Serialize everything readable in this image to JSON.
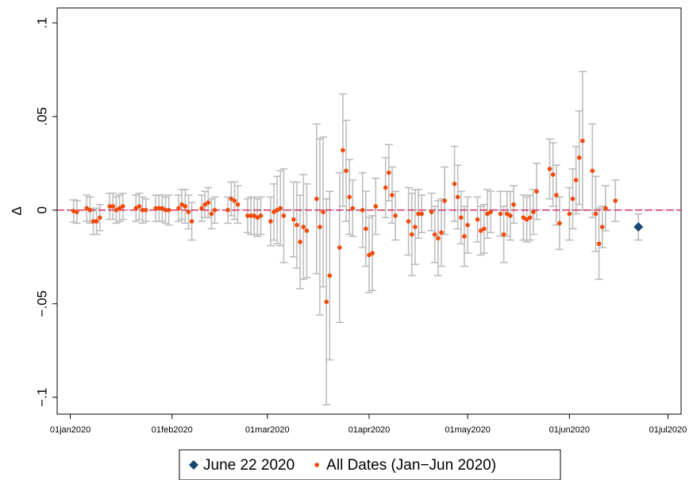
{
  "chart_data": {
    "type": "errorbar",
    "y_label": "Δ",
    "xlim": [
      "2019-12-28",
      "2020-07-05"
    ],
    "xticks": [
      {
        "value": "2020-01-01",
        "label": "01jan2020"
      },
      {
        "value": "2020-02-01",
        "label": "01feb2020"
      },
      {
        "value": "2020-03-01",
        "label": "01mar2020"
      },
      {
        "value": "2020-04-01",
        "label": "01apr2020"
      },
      {
        "value": "2020-05-01",
        "label": "01may2020"
      },
      {
        "value": "2020-06-01",
        "label": "01jun2020"
      },
      {
        "value": "2020-07-01",
        "label": "01jul2020"
      }
    ],
    "ylim": [
      -0.109,
      0.108
    ],
    "yticks": [
      {
        "value": -0.1,
        "label": "−.1"
      },
      {
        "value": -0.05,
        "label": "−.05"
      },
      0,
      {
        "value": 0.05,
        "label": ".05"
      },
      {
        "value": 0.1,
        "label": ".1"
      }
    ],
    "hline": 0,
    "hline_color": "#d62050",
    "error_color": "#bdbdbd",
    "series": [
      {
        "name": "June 22 2020",
        "color": "#1a476f",
        "marker": "diamond",
        "x": [
          "2020-06-22"
        ],
        "values": [
          -0.009
        ],
        "errors": [
          0.007
        ]
      },
      {
        "name": "All Dates (Jan−Jun 2020)",
        "color": "#f04a0c",
        "marker": "dot",
        "x": [
          "2020-01-02",
          "2020-01-03",
          "2020-01-06",
          "2020-01-07",
          "2020-01-08",
          "2020-01-09",
          "2020-01-10",
          "2020-01-13",
          "2020-01-14",
          "2020-01-15",
          "2020-01-16",
          "2020-01-17",
          "2020-01-21",
          "2020-01-22",
          "2020-01-23",
          "2020-01-24",
          "2020-01-27",
          "2020-01-28",
          "2020-01-29",
          "2020-01-30",
          "2020-01-31",
          "2020-02-03",
          "2020-02-04",
          "2020-02-05",
          "2020-02-06",
          "2020-02-07",
          "2020-02-10",
          "2020-02-11",
          "2020-02-12",
          "2020-02-13",
          "2020-02-14",
          "2020-02-18",
          "2020-02-19",
          "2020-02-20",
          "2020-02-21",
          "2020-02-24",
          "2020-02-25",
          "2020-02-26",
          "2020-02-27",
          "2020-02-28",
          "2020-03-02",
          "2020-03-03",
          "2020-03-04",
          "2020-03-05",
          "2020-03-06",
          "2020-03-09",
          "2020-03-10",
          "2020-03-11",
          "2020-03-12",
          "2020-03-13",
          "2020-03-16",
          "2020-03-17",
          "2020-03-18",
          "2020-03-19",
          "2020-03-20",
          "2020-03-23",
          "2020-03-24",
          "2020-03-25",
          "2020-03-26",
          "2020-03-27",
          "2020-03-30",
          "2020-03-31",
          "2020-04-01",
          "2020-04-02",
          "2020-04-03",
          "2020-04-06",
          "2020-04-07",
          "2020-04-08",
          "2020-04-09",
          "2020-04-13",
          "2020-04-14",
          "2020-04-15",
          "2020-04-16",
          "2020-04-17",
          "2020-04-20",
          "2020-04-21",
          "2020-04-22",
          "2020-04-23",
          "2020-04-24",
          "2020-04-27",
          "2020-04-28",
          "2020-04-29",
          "2020-04-30",
          "2020-05-01",
          "2020-05-04",
          "2020-05-05",
          "2020-05-06",
          "2020-05-07",
          "2020-05-08",
          "2020-05-11",
          "2020-05-12",
          "2020-05-13",
          "2020-05-14",
          "2020-05-15",
          "2020-05-18",
          "2020-05-19",
          "2020-05-20",
          "2020-05-21",
          "2020-05-22",
          "2020-05-26",
          "2020-05-27",
          "2020-05-28",
          "2020-05-29",
          "2020-06-01",
          "2020-06-02",
          "2020-06-03",
          "2020-06-04",
          "2020-06-05",
          "2020-06-08",
          "2020-06-09",
          "2020-06-10",
          "2020-06-11",
          "2020-06-12",
          "2020-06-15"
        ],
        "values": [
          -0.0005,
          -0.001,
          0.001,
          0,
          -0.006,
          -0.006,
          -0.004,
          0.002,
          0.002,
          0,
          0.001,
          0.002,
          0.001,
          0.002,
          0,
          0,
          0.001,
          0.001,
          0.001,
          0,
          0,
          0.001,
          0.003,
          0.002,
          -0.001,
          -0.006,
          0.001,
          0.003,
          0.004,
          -0.002,
          0,
          0,
          0.006,
          0.005,
          0.003,
          -0.003,
          -0.003,
          -0.003,
          -0.004,
          -0.003,
          -0.006,
          -0.001,
          0,
          0.001,
          -0.003,
          -0.005,
          -0.008,
          -0.017,
          -0.009,
          -0.011,
          0.006,
          -0.009,
          -0.001,
          -0.049,
          -0.035,
          -0.02,
          0.032,
          0.021,
          0.007,
          0.001,
          0,
          -0.01,
          -0.024,
          -0.023,
          0.002,
          0.012,
          0.02,
          0.008,
          -0.003,
          -0.006,
          -0.013,
          -0.009,
          -0.002,
          -0.002,
          -0.001,
          -0.013,
          -0.015,
          -0.012,
          0.005,
          0.014,
          0.007,
          -0.004,
          -0.014,
          -0.008,
          -0.005,
          -0.011,
          -0.01,
          -0.002,
          -0.001,
          -0.002,
          -0.013,
          -0.002,
          -0.003,
          0.003,
          -0.004,
          -0.005,
          -0.004,
          -0.001,
          0.01,
          0.022,
          0.019,
          0.008,
          -0.007,
          -0.002,
          0.006,
          0.016,
          0.028,
          0.037,
          0.021,
          -0.002,
          -0.018,
          -0.009,
          0.001,
          0.005
        ],
        "errors": [
          0.006,
          0.006,
          0.007,
          0.007,
          0.007,
          0.007,
          0.007,
          0.007,
          0.007,
          0.007,
          0.007,
          0.007,
          0.007,
          0.007,
          0.007,
          0.006,
          0.007,
          0.007,
          0.007,
          0.007,
          0.008,
          0.007,
          0.008,
          0.009,
          0.009,
          0.01,
          0.007,
          0.007,
          0.008,
          0.008,
          0.007,
          0.007,
          0.009,
          0.01,
          0.01,
          0.009,
          0.01,
          0.01,
          0.01,
          0.01,
          0.013,
          0.015,
          0.018,
          0.02,
          0.025,
          0.02,
          0.023,
          0.025,
          0.028,
          0.025,
          0.04,
          0.047,
          0.04,
          0.055,
          0.045,
          0.04,
          0.03,
          0.027,
          0.02,
          0.015,
          0.02,
          0.02,
          0.02,
          0.02,
          0.015,
          0.016,
          0.015,
          0.015,
          0.013,
          0.018,
          0.022,
          0.02,
          0.013,
          0.01,
          0.01,
          0.015,
          0.02,
          0.018,
          0.018,
          0.02,
          0.017,
          0.014,
          0.016,
          0.015,
          0.012,
          0.013,
          0.013,
          0.013,
          0.011,
          0.012,
          0.015,
          0.012,
          0.013,
          0.01,
          0.012,
          0.012,
          0.012,
          0.012,
          0.015,
          0.016,
          0.017,
          0.016,
          0.014,
          0.014,
          0.016,
          0.018,
          0.025,
          0.037,
          0.025,
          0.02,
          0.019,
          0.011,
          0.012,
          0.011
        ]
      }
    ]
  }
}
